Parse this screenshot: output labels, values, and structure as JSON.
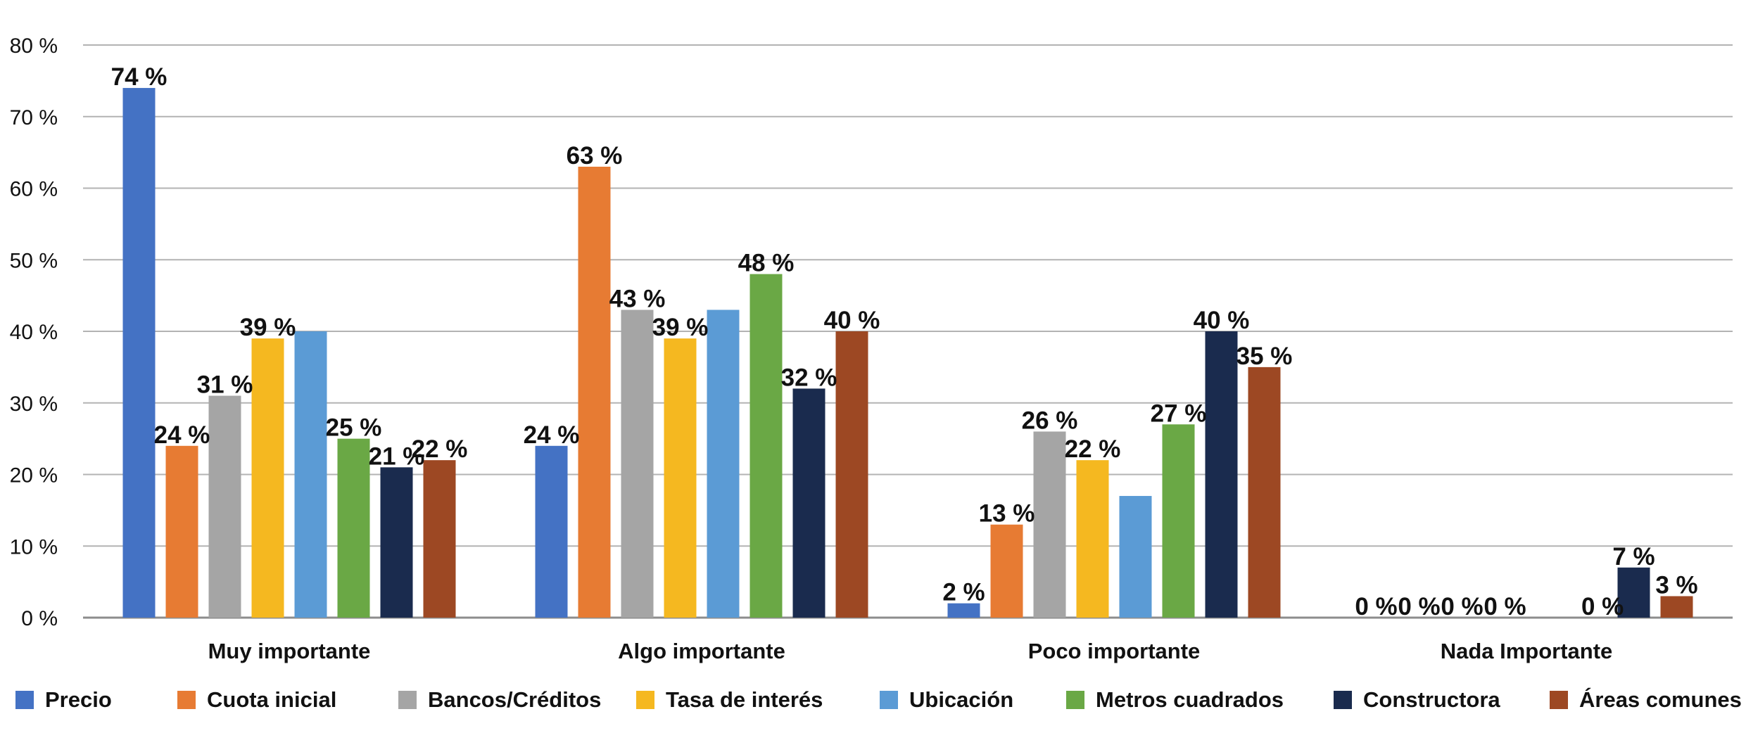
{
  "chart_data": {
    "type": "bar",
    "categories": [
      "Muy importante",
      "Algo importante",
      "Poco importante",
      "Nada Importante"
    ],
    "series": [
      {
        "name": "Precio",
        "color": "#4472C4",
        "values": [
          74,
          24,
          2,
          null
        ],
        "labels": [
          "74 %",
          "24 %",
          "2 %",
          "0 %"
        ],
        "shown": [
          true,
          true,
          true,
          true
        ]
      },
      {
        "name": "Cuota inicial",
        "color": "#E77B33",
        "values": [
          24,
          63,
          13,
          null
        ],
        "labels": [
          "24 %",
          "63 %",
          "13 %",
          "0 %"
        ],
        "shown": [
          true,
          true,
          true,
          true
        ]
      },
      {
        "name": "Bancos/Créditos",
        "color": "#A5A5A5",
        "values": [
          31,
          43,
          26,
          null
        ],
        "labels": [
          "31 %",
          "43 %",
          "26 %",
          "0 %"
        ],
        "shown": [
          true,
          true,
          true,
          true
        ]
      },
      {
        "name": "Tasa de interés",
        "color": "#F5B820",
        "values": [
          39,
          39,
          22,
          null
        ],
        "labels": [
          "39 %",
          "39 %",
          "22 %",
          "0 %"
        ],
        "shown": [
          true,
          true,
          true,
          true
        ]
      },
      {
        "name": "Ubicación",
        "color": "#5B9BD5",
        "values": [
          40,
          43,
          17,
          null
        ],
        "labels": [
          "",
          "",
          "",
          ""
        ],
        "shown": [
          false,
          false,
          false,
          false
        ]
      },
      {
        "name": "Metros cuadrados",
        "color": "#6AA845",
        "values": [
          25,
          48,
          27,
          null
        ],
        "labels": [
          "25 %",
          "48 %",
          "27 %",
          ""
        ],
        "shown": [
          true,
          true,
          true,
          false
        ]
      },
      {
        "name": "Constructora",
        "color": "#1A2B4E",
        "values": [
          21,
          32,
          40,
          7
        ],
        "labels": [
          "21 %",
          "32 %",
          "40 %",
          "7 %"
        ],
        "shown": [
          true,
          true,
          true,
          true
        ]
      },
      {
        "name": "Áreas comunes",
        "color": "#9D4823",
        "values": [
          22,
          40,
          35,
          3
        ],
        "labels": [
          "22 %",
          "40 %",
          "35 %",
          "3 %"
        ],
        "shown": [
          true,
          true,
          true,
          true
        ]
      }
    ],
    "extra_labels": [
      {
        "category": "Nada Importante",
        "text": "0 %"
      }
    ],
    "y_ticks": [
      "0 %",
      "10 %",
      "20 %",
      "30 %",
      "40 %",
      "50 %",
      "60 %",
      "70 %",
      "80 %"
    ],
    "ylim": [
      0,
      80
    ],
    "grid": true,
    "legend_position": "bottom",
    "title": "",
    "xlabel": "",
    "ylabel": ""
  }
}
